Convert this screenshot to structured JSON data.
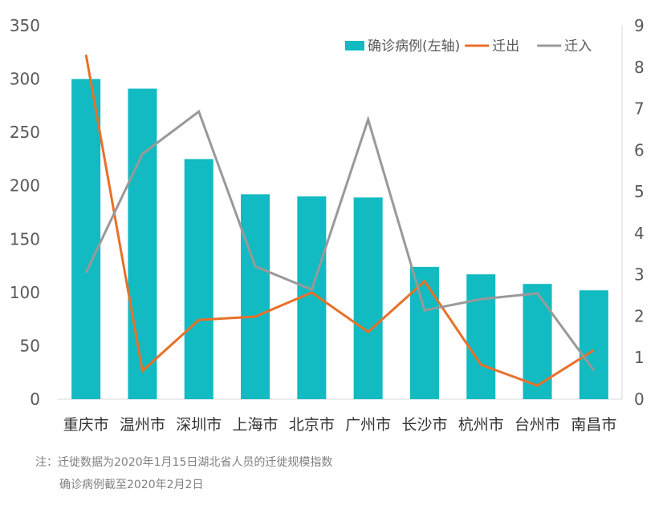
{
  "chart_data": {
    "type": "bar+line",
    "categories": [
      "重庆市",
      "温州市",
      "深圳市",
      "上海市",
      "北京市",
      "广州市",
      "长沙市",
      "杭州市",
      "台州市",
      "南昌市"
    ],
    "left_axis": {
      "ylim": [
        0,
        350
      ],
      "ticks": [
        0,
        50,
        100,
        150,
        200,
        250,
        300,
        350
      ]
    },
    "right_axis": {
      "ylim": [
        0,
        9
      ],
      "ticks": [
        0,
        1,
        2,
        3,
        4,
        5,
        6,
        7,
        8,
        9
      ]
    },
    "grid": false,
    "legend_position": "top-right",
    "series": [
      {
        "name": "确诊病例(左轴)",
        "type": "bar",
        "axis": "left",
        "color": "#12BAC1",
        "values": [
          300,
          291,
          225,
          192,
          190,
          189,
          124,
          117,
          108,
          102
        ]
      },
      {
        "name": "迁出",
        "type": "line",
        "axis": "right",
        "color": "#E8702A",
        "values": [
          8.3,
          0.68,
          1.91,
          1.99,
          2.57,
          1.62,
          2.84,
          0.83,
          0.33,
          1.18
        ]
      },
      {
        "name": "迁入",
        "type": "line",
        "axis": "right",
        "color": "#999999",
        "values": [
          3.05,
          5.91,
          6.93,
          3.2,
          2.64,
          6.74,
          2.14,
          2.41,
          2.55,
          0.69
        ]
      }
    ]
  },
  "notes": [
    "注：迁徙数据为2020年1月15日湖北省人员的迁徙规模指数",
    "确诊病例截至2020年2月2日"
  ]
}
